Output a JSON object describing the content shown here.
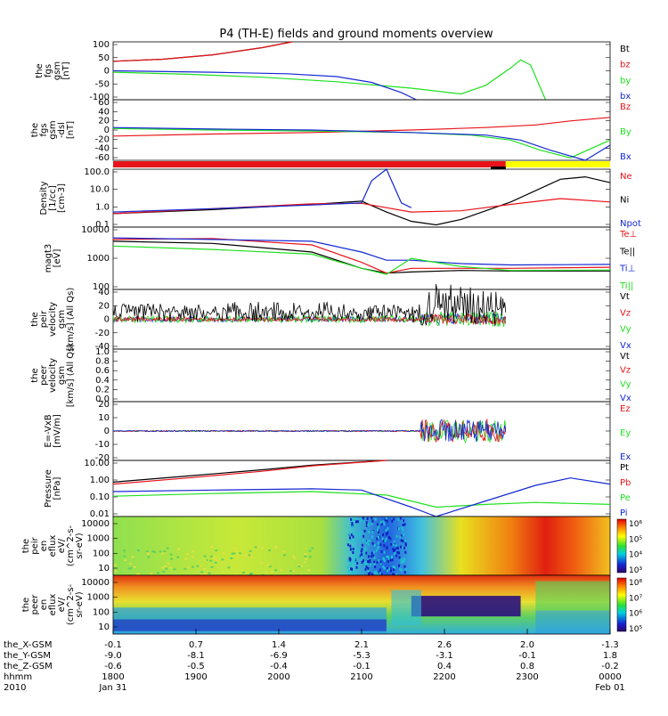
{
  "title": "P4 (TH-E) fields and ground moments overview",
  "colors": {
    "black": "#000000",
    "red": "#e8141a",
    "green": "#1fe01f",
    "blue": "#1428d2",
    "yellow": "#ffff00",
    "white": "#ffffff"
  },
  "chart_data": [
    {
      "id": "fgs_gsm",
      "type": "line",
      "ylabel_lines": [
        "the",
        "fgs",
        "gsm",
        "[nT]"
      ],
      "ylim": [
        -100,
        100
      ],
      "yticks": [
        "100",
        "50",
        "0",
        "-50",
        "-100"
      ],
      "legend": [
        {
          "name": "Bt",
          "color": "black"
        },
        {
          "name": "bz",
          "color": "red"
        },
        {
          "name": "by",
          "color": "green"
        },
        {
          "name": "bx",
          "color": "blue"
        }
      ],
      "series": [
        {
          "name": "bt",
          "color": "black",
          "x": [
            0,
            0.1,
            0.2,
            0.3,
            0.36
          ],
          "y": [
            33,
            40,
            55,
            80,
            100
          ]
        },
        {
          "name": "bz",
          "color": "red",
          "x": [
            0,
            0.1,
            0.2,
            0.3,
            0.36
          ],
          "y": [
            33,
            40,
            55,
            80,
            100
          ]
        },
        {
          "name": "by",
          "color": "green",
          "x": [
            0,
            0.15,
            0.3,
            0.45,
            0.6,
            0.7,
            0.75,
            0.8,
            0.82,
            0.84,
            0.86,
            0.87
          ],
          "y": [
            -5,
            -12,
            -22,
            -38,
            -60,
            -80,
            -50,
            10,
            38,
            20,
            -60,
            -100
          ]
        },
        {
          "name": "bx",
          "color": "blue",
          "x": [
            0,
            0.2,
            0.35,
            0.45,
            0.52,
            0.58,
            0.61
          ],
          "y": [
            0,
            -5,
            -10,
            -20,
            -40,
            -75,
            -100
          ]
        }
      ]
    },
    {
      "id": "fgs_gse",
      "type": "line",
      "ylabel_lines": [
        "the",
        "fgs",
        "gsm",
        "-dsl",
        "[nT]"
      ],
      "ylim": [
        -60,
        60
      ],
      "yticks": [
        "60",
        "40",
        "20",
        "0",
        "-20",
        "-40",
        "-60"
      ],
      "legend": [
        {
          "name": "Bz",
          "color": "red"
        },
        {
          "name": "By",
          "color": "green"
        },
        {
          "name": "Bx",
          "color": "blue"
        }
      ],
      "series": [
        {
          "name": "Bz",
          "color": "red",
          "x": [
            0,
            0.2,
            0.4,
            0.6,
            0.75,
            0.85,
            0.92,
            1.0
          ],
          "y": [
            -12,
            -8,
            -5,
            0,
            5,
            10,
            18,
            25
          ]
        },
        {
          "name": "By",
          "color": "green",
          "x": [
            0,
            0.2,
            0.4,
            0.6,
            0.72,
            0.8,
            0.86,
            0.92,
            1.0
          ],
          "y": [
            3,
            0,
            -2,
            -5,
            -10,
            -20,
            -40,
            -55,
            -20
          ]
        },
        {
          "name": "Bx",
          "color": "blue",
          "x": [
            0,
            0.2,
            0.4,
            0.6,
            0.75,
            0.82,
            0.88,
            0.95,
            1.0
          ],
          "y": [
            5,
            2,
            0,
            -5,
            -10,
            -20,
            -40,
            -60,
            -30
          ]
        }
      ]
    },
    {
      "id": "mode_bar",
      "type": "bar",
      "segments": [
        {
          "from": 0,
          "to": 0.79,
          "color": "red"
        },
        {
          "from": 0.79,
          "to": 1.0,
          "color": "yellow"
        }
      ]
    },
    {
      "id": "density",
      "type": "line",
      "log": true,
      "ylabel_lines": [
        "Density",
        "[1/cc]",
        "[cm-3]"
      ],
      "ylim": [
        0.1,
        100
      ],
      "yticks": [
        "100.0",
        "10.0",
        "1.0",
        "0.1"
      ],
      "legend": [
        {
          "name": "Ne",
          "color": "red"
        },
        {
          "name": "Ni",
          "color": "black"
        },
        {
          "name": "Npot",
          "color": "blue"
        }
      ],
      "series": [
        {
          "name": "Ni",
          "color": "black",
          "x": [
            0,
            0.2,
            0.4,
            0.5,
            0.55,
            0.6,
            0.65,
            0.7,
            0.8,
            0.9,
            0.95,
            1.0
          ],
          "y": [
            0.5,
            0.8,
            1.5,
            2.2,
            0.6,
            0.2,
            0.13,
            0.25,
            2.0,
            30,
            40,
            20
          ]
        },
        {
          "name": "Ne",
          "color": "red",
          "x": [
            0,
            0.2,
            0.4,
            0.5,
            0.6,
            0.7,
            0.8,
            0.9,
            1.0
          ],
          "y": [
            0.5,
            0.9,
            1.6,
            1.7,
            0.6,
            0.7,
            1.5,
            3.0,
            2.0
          ]
        },
        {
          "name": "Npot",
          "color": "blue",
          "x": [
            0,
            0.2,
            0.4,
            0.5,
            0.52,
            0.55,
            0.58,
            0.6
          ],
          "y": [
            0.6,
            0.9,
            1.4,
            1.8,
            25,
            100,
            1.8,
            1.0
          ]
        }
      ]
    },
    {
      "id": "temperature",
      "type": "line",
      "log": true,
      "ylabel_lines": [
        "magt3",
        "[eV]"
      ],
      "ylim": [
        50,
        10000
      ],
      "yticks": [
        "10000",
        "1000",
        "100"
      ],
      "legend": [
        {
          "name": "Te⊥",
          "color": "red"
        },
        {
          "name": "Te||",
          "color": "black"
        },
        {
          "name": "Ti⊥",
          "color": "blue"
        },
        {
          "name": "Ti||",
          "color": "green"
        }
      ],
      "series": [
        {
          "name": "Te||",
          "color": "black",
          "x": [
            0,
            0.2,
            0.4,
            0.5,
            0.55,
            0.6,
            0.7,
            0.8,
            1.0
          ],
          "y": [
            3000,
            2500,
            1200,
            300,
            200,
            220,
            250,
            240,
            240
          ]
        },
        {
          "name": "Te⊥",
          "color": "red",
          "x": [
            0,
            0.2,
            0.4,
            0.5,
            0.55,
            0.6,
            0.7,
            0.8,
            1.0
          ],
          "y": [
            3500,
            3800,
            2200,
            500,
            200,
            300,
            300,
            300,
            330
          ]
        },
        {
          "name": "Ti⊥",
          "color": "blue",
          "x": [
            0,
            0.2,
            0.4,
            0.5,
            0.55,
            0.6,
            0.7,
            0.8,
            1.0
          ],
          "y": [
            4000,
            3500,
            3000,
            1200,
            600,
            600,
            450,
            400,
            420
          ]
        },
        {
          "name": "Ti||",
          "color": "green",
          "x": [
            0,
            0.2,
            0.4,
            0.5,
            0.55,
            0.6,
            0.7,
            0.8,
            1.0
          ],
          "y": [
            2000,
            1500,
            1000,
            300,
            180,
            700,
            350,
            250,
            260
          ]
        }
      ]
    },
    {
      "id": "peir_velocity",
      "type": "line",
      "ylabel_lines": [
        "the",
        "peir",
        "velocity",
        "gsm",
        "[km/s] (All Qs)"
      ],
      "ylim": [
        -40,
        40
      ],
      "yticks": [
        "40",
        "20",
        "0",
        "-20",
        "-40"
      ],
      "legend": [
        {
          "name": "Vt",
          "color": "black"
        },
        {
          "name": "Vz",
          "color": "red"
        },
        {
          "name": "Vy",
          "color": "green"
        },
        {
          "name": "Vx",
          "color": "blue"
        }
      ]
    },
    {
      "id": "peer_velocity",
      "type": "line",
      "ylabel_lines": [
        "the",
        "peer",
        "velocity",
        "gsm",
        "[km/s] (All Qs)"
      ],
      "ylim": [
        0,
        1.0
      ],
      "yticks": [
        "1.0",
        "0.8",
        "0.6",
        "0.4",
        "0.2",
        "0.0"
      ],
      "legend": [
        {
          "name": "Vt",
          "color": "black"
        },
        {
          "name": "Vz",
          "color": "red"
        },
        {
          "name": "Vy",
          "color": "green"
        },
        {
          "name": "Vx",
          "color": "blue"
        }
      ]
    },
    {
      "id": "efield",
      "type": "line",
      "ylabel_lines": [
        "E=-VxB",
        "[mV/m]"
      ],
      "ylim": [
        -20,
        20
      ],
      "yticks": [
        "20",
        "10",
        "0",
        "-10",
        "-20"
      ],
      "legend": [
        {
          "name": "Ez",
          "color": "red"
        },
        {
          "name": "Ey",
          "color": "green"
        },
        {
          "name": "Ex",
          "color": "blue"
        }
      ]
    },
    {
      "id": "pressure",
      "type": "line",
      "log": true,
      "ylabel_lines": [
        "Pressure",
        "[nPa]"
      ],
      "ylim": [
        0.005,
        20
      ],
      "yticks": [
        "10.00",
        "1.00",
        "0.10",
        "0.01"
      ],
      "legend": [
        {
          "name": "Pt",
          "color": "black"
        },
        {
          "name": "Pb",
          "color": "red"
        },
        {
          "name": "Pe",
          "color": "green"
        },
        {
          "name": "Pi",
          "color": "blue"
        }
      ],
      "series": [
        {
          "name": "Pt",
          "color": "black",
          "x": [
            0,
            0.15,
            0.3,
            0.4,
            0.55
          ],
          "y": [
            0.8,
            2.0,
            5.0,
            10.0,
            20.0
          ]
        },
        {
          "name": "Pb",
          "color": "red",
          "x": [
            0,
            0.15,
            0.3,
            0.4,
            0.55
          ],
          "y": [
            0.6,
            1.5,
            4.0,
            9.0,
            20.0
          ]
        },
        {
          "name": "Pe",
          "color": "green",
          "x": [
            0,
            0.2,
            0.4,
            0.55,
            0.65,
            0.75,
            0.85,
            1.0
          ],
          "y": [
            0.1,
            0.15,
            0.2,
            0.12,
            0.02,
            0.03,
            0.04,
            0.03
          ]
        },
        {
          "name": "Pi",
          "color": "blue",
          "x": [
            0,
            0.2,
            0.4,
            0.5,
            0.6,
            0.65,
            0.75,
            0.85,
            0.92,
            1.0
          ],
          "y": [
            0.2,
            0.25,
            0.3,
            0.25,
            0.02,
            0.004,
            0.05,
            0.5,
            1.5,
            0.6
          ]
        }
      ]
    },
    {
      "id": "peir_spec",
      "type": "heatmap",
      "ylabel_lines": [
        "the",
        "peir",
        "en",
        "eflux",
        "eV/",
        "(cm^2-s-",
        "sr-eV)"
      ],
      "yticks": [
        "10000",
        "1000",
        "100",
        "10"
      ],
      "colorbar_ticks": [
        "10⁶",
        "10⁵",
        "10⁴",
        "10³"
      ]
    },
    {
      "id": "peer_spec",
      "type": "heatmap",
      "ylabel_lines": [
        "the",
        "peer",
        "en",
        "eflux",
        "eV/",
        "(cm^2-s-",
        "sr-eV)"
      ],
      "yticks": [
        "10000",
        "1000",
        "100",
        "10"
      ],
      "colorbar_ticks": [
        "10⁸",
        "10⁷",
        "10⁶",
        "10⁵"
      ]
    }
  ],
  "xaxis": {
    "rows": [
      {
        "label": "the_X-GSM",
        "values": [
          "-0.1",
          "0.7",
          "1.4",
          "2.1",
          "2.6",
          "2.0",
          "-1.3"
        ]
      },
      {
        "label": "the_Y-GSM",
        "values": [
          "-9.0",
          "-8.1",
          "-6.9",
          "-5.3",
          "-3.1",
          "-0.1",
          "1.8"
        ]
      },
      {
        "label": "the_Z-GSM",
        "values": [
          "-0.6",
          "-0.5",
          "-0.4",
          "-0.1",
          "0.4",
          "0.8",
          "-0.2"
        ]
      },
      {
        "label": "hhmm",
        "values": [
          "1800",
          "1900",
          "2000",
          "2100",
          "2200",
          "2300",
          "0000"
        ]
      },
      {
        "label": "2010",
        "values": [
          "Jan 31",
          "",
          "",
          "",
          "",
          "",
          "Feb 01"
        ]
      }
    ]
  }
}
